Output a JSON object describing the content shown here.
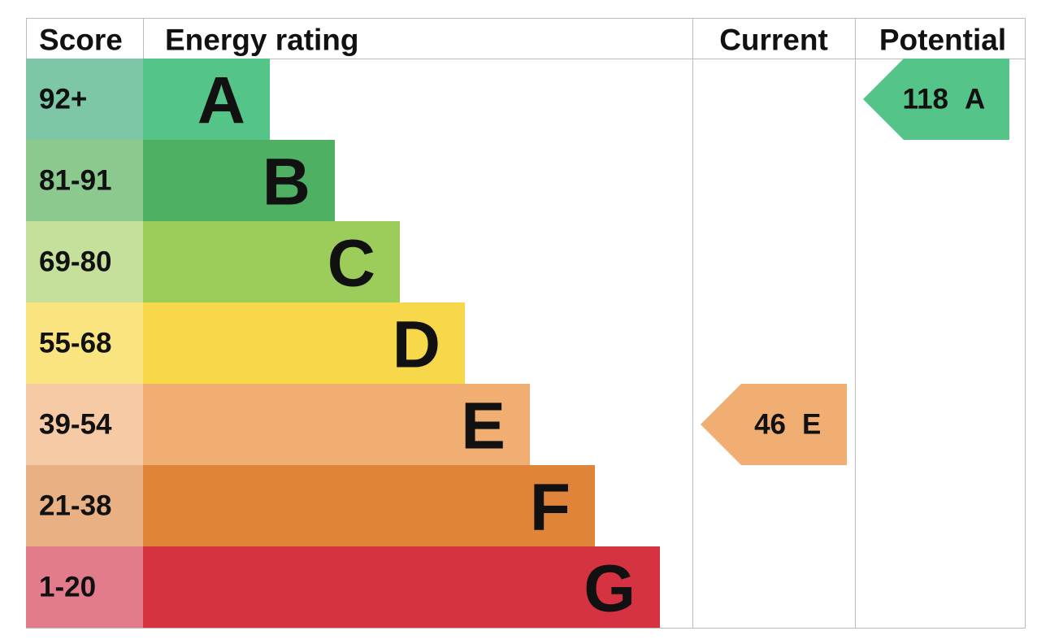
{
  "header": {
    "score": "Score",
    "rating": "Energy rating",
    "current": "Current",
    "potential": "Potential"
  },
  "bands": [
    {
      "score": "92+",
      "letter": "A",
      "color": "#55c488",
      "score_color": "#7dc6a6"
    },
    {
      "score": "81-91",
      "letter": "B",
      "color": "#4fb063",
      "score_color": "#8bc98f"
    },
    {
      "score": "69-80",
      "letter": "C",
      "color": "#9ccd5a",
      "score_color": "#c5e09b"
    },
    {
      "score": "55-68",
      "letter": "D",
      "color": "#f6d84a",
      "score_color": "#fae47f"
    },
    {
      "score": "39-54",
      "letter": "E",
      "color": "#f0ae72",
      "score_color": "#f5caa5"
    },
    {
      "score": "21-38",
      "letter": "F",
      "color": "#e0843a",
      "score_color": "#e9b183"
    },
    {
      "score": "1-20",
      "letter": "G",
      "color": "#d53342",
      "score_color": "#e27b8c"
    }
  ],
  "current": {
    "value": 46,
    "letter": "E"
  },
  "potential": {
    "value": 118,
    "letter": "A"
  }
}
